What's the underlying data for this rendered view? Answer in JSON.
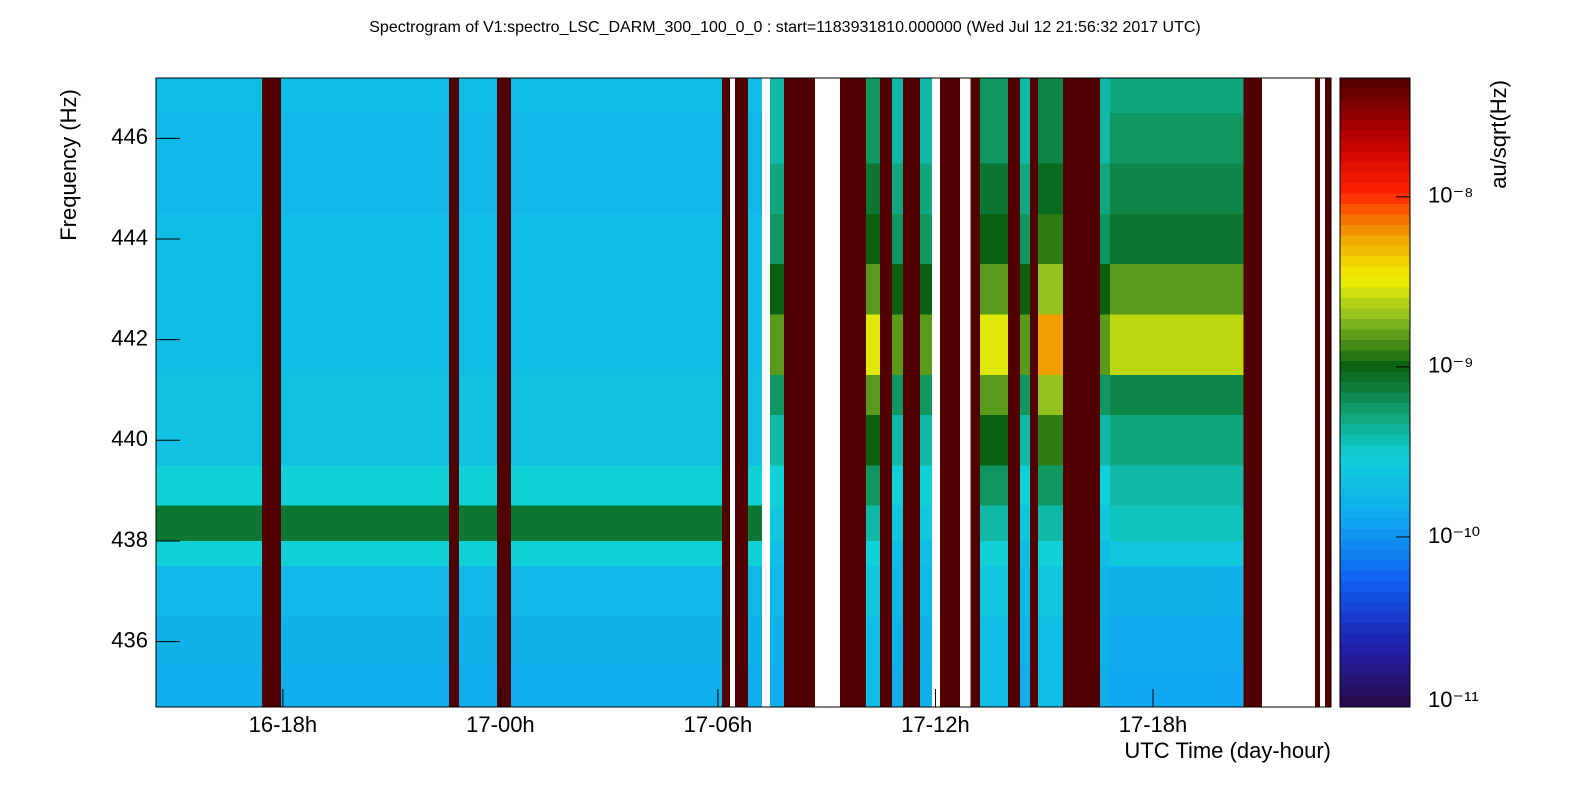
{
  "chart_data": {
    "type": "heatmap",
    "title": "Spectrogram of V1:spectro_LSC_DARM_300_100_0_0 : start=1183931810.000000 (Wed Jul 12 21:56:32 2017 UTC)",
    "x_label": "UTC Time (day-hour)",
    "y_label": "Frequency (Hz)",
    "colorbar_label": "au/sqrt(Hz)",
    "xlim": [
      14.5,
      46.91
    ],
    "xticks": [
      {
        "value": 18,
        "label": "16-18h"
      },
      {
        "value": 24,
        "label": "17-00h"
      },
      {
        "value": 30,
        "label": "17-06h"
      },
      {
        "value": 36,
        "label": "17-12h"
      },
      {
        "value": 42,
        "label": "17-18h"
      }
    ],
    "ylim": [
      434.7,
      447.2
    ],
    "yticks": [
      436,
      438,
      440,
      442,
      444,
      446
    ],
    "zlim": [
      1e-11,
      5e-08
    ],
    "zscale": "log",
    "zticks": [
      {
        "value": 1e-11,
        "label": "10⁻¹¹"
      },
      {
        "value": 1e-10,
        "label": "10⁻¹⁰"
      },
      {
        "value": 1e-09,
        "label": "10⁻⁹"
      },
      {
        "value": 1e-08,
        "label": "10⁻⁸"
      }
    ],
    "colormap": [
      [
        0,
        "#2a0a4a"
      ],
      [
        0.1,
        "#2020b0"
      ],
      [
        0.2,
        "#1060f0"
      ],
      [
        0.3,
        "#10a8f0"
      ],
      [
        0.4,
        "#10d0d8"
      ],
      [
        0.47,
        "#10a070"
      ],
      [
        0.54,
        "#086010"
      ],
      [
        0.62,
        "#90c020"
      ],
      [
        0.68,
        "#f0f000"
      ],
      [
        0.75,
        "#f0a000"
      ],
      [
        0.82,
        "#ff2000"
      ],
      [
        0.9,
        "#c00000"
      ],
      [
        1,
        "#500000"
      ]
    ],
    "x_edges": [
      14.5,
      17.42,
      17.95,
      22.58,
      22.86,
      23.91,
      24.29,
      30.11,
      30.33,
      30.47,
      30.83,
      31.22,
      31.44,
      31.82,
      32.68,
      33.37,
      34.09,
      34.47,
      34.8,
      35.11,
      35.58,
      35.91,
      36.13,
      36.68,
      36.96,
      37.23,
      38.0,
      38.33,
      38.61,
      38.83,
      39.52,
      40.54,
      40.82,
      44.49,
      45.01,
      46.47,
      46.61,
      46.75,
      46.91
    ],
    "y_edges": [
      434.7,
      435.5,
      436.5,
      437.5,
      438.0,
      438.7,
      439.5,
      440.5,
      441.3,
      442.5,
      443.5,
      444.5,
      445.5,
      446.5,
      447.2
    ],
    "values": [
      [
        1.5e-10,
        1.6e-10,
        1.8e-10,
        3e-10,
        8e-10,
        3e-10,
        2.2e-10,
        2.2e-10,
        2e-10,
        2e-10,
        2e-10,
        1.8e-10,
        1.8e-10,
        2e-10
      ],
      [
        5e-08,
        5e-08,
        5e-08,
        5e-08,
        5e-08,
        5e-08,
        5e-08,
        5e-08,
        5e-08,
        5e-08,
        5e-08,
        5e-08,
        5e-08,
        5e-08
      ],
      [
        1.5e-10,
        1.6e-10,
        1.8e-10,
        3e-10,
        8e-10,
        3e-10,
        2.2e-10,
        2.2e-10,
        2e-10,
        2e-10,
        2e-10,
        1.8e-10,
        1.8e-10,
        2e-10
      ],
      [
        5e-08,
        5e-08,
        5e-08,
        5e-08,
        5e-08,
        5e-08,
        5e-08,
        5e-08,
        5e-08,
        5e-08,
        5e-08,
        5e-08,
        5e-08,
        5e-08
      ],
      [
        1.5e-10,
        1.6e-10,
        1.8e-10,
        3e-10,
        8e-10,
        3e-10,
        2.2e-10,
        2.2e-10,
        2e-10,
        2e-10,
        2e-10,
        1.8e-10,
        1.8e-10,
        2e-10
      ],
      [
        5e-08,
        5e-08,
        5e-08,
        5e-08,
        5e-08,
        5e-08,
        5e-08,
        5e-08,
        5e-08,
        5e-08,
        5e-08,
        5e-08,
        5e-08,
        5e-08
      ],
      [
        1.5e-10,
        1.6e-10,
        1.8e-10,
        3e-10,
        8e-10,
        3e-10,
        2.2e-10,
        2.2e-10,
        2e-10,
        2e-10,
        2e-10,
        1.8e-10,
        1.8e-10,
        2e-10
      ],
      [
        5e-08,
        5e-08,
        5e-08,
        5e-08,
        5e-08,
        5e-08,
        5e-08,
        5e-08,
        5e-08,
        5e-08,
        5e-08,
        5e-08,
        5e-08,
        5e-08
      ],
      [
        null,
        null,
        null,
        null,
        null,
        null,
        null,
        null,
        null,
        null,
        null,
        null,
        null,
        null
      ],
      [
        5e-08,
        5e-08,
        5e-08,
        5e-08,
        5e-08,
        5e-08,
        5e-08,
        5e-08,
        5e-08,
        5e-08,
        5e-08,
        5e-08,
        5e-08,
        5e-08
      ],
      [
        1.5e-10,
        1.6e-10,
        1.8e-10,
        3e-10,
        8e-10,
        3e-10,
        2.2e-10,
        2.2e-10,
        2e-10,
        2e-10,
        2e-10,
        1.8e-10,
        1.8e-10,
        2e-10
      ],
      [
        null,
        null,
        null,
        null,
        null,
        null,
        null,
        null,
        null,
        null,
        null,
        null,
        null,
        null
      ],
      [
        1.5e-10,
        1.6e-10,
        1.8e-10,
        2e-10,
        2.5e-10,
        3e-10,
        4e-10,
        6e-10,
        1.5e-09,
        1e-09,
        6e-10,
        5e-10,
        4e-10,
        4e-10
      ],
      [
        5e-08,
        5e-08,
        5e-08,
        5e-08,
        5e-08,
        5e-08,
        5e-08,
        5e-08,
        5e-08,
        5e-08,
        5e-08,
        5e-08,
        5e-08,
        5e-08
      ],
      [
        null,
        null,
        null,
        null,
        null,
        null,
        null,
        null,
        null,
        null,
        null,
        null,
        null,
        null
      ],
      [
        5e-08,
        5e-08,
        5e-08,
        5e-08,
        5e-08,
        5e-08,
        5e-08,
        5e-08,
        5e-08,
        5e-08,
        5e-08,
        5e-08,
        5e-08,
        5e-08
      ],
      [
        2e-10,
        2e-10,
        2.5e-10,
        3e-10,
        4e-10,
        6e-10,
        1e-09,
        1.5e-09,
        3e-09,
        1.5e-09,
        1e-09,
        8e-10,
        6e-10,
        6e-10
      ],
      [
        5e-08,
        5e-08,
        5e-08,
        5e-08,
        5e-08,
        5e-08,
        5e-08,
        5e-08,
        5e-08,
        5e-08,
        5e-08,
        5e-08,
        5e-08,
        5e-08
      ],
      [
        1.5e-10,
        1.6e-10,
        1.8e-10,
        2e-10,
        2.5e-10,
        3e-10,
        4e-10,
        6e-10,
        1.5e-09,
        1e-09,
        6e-10,
        5e-10,
        4e-10,
        4e-10
      ],
      [
        5e-08,
        5e-08,
        5e-08,
        5e-08,
        5e-08,
        5e-08,
        5e-08,
        5e-08,
        5e-08,
        5e-08,
        5e-08,
        5e-08,
        5e-08,
        5e-08
      ],
      [
        1.5e-10,
        1.6e-10,
        1.8e-10,
        2e-10,
        2.5e-10,
        3e-10,
        4e-10,
        6e-10,
        1.5e-09,
        1e-09,
        6e-10,
        5e-10,
        4e-10,
        4e-10
      ],
      [
        null,
        null,
        null,
        null,
        null,
        null,
        null,
        null,
        null,
        null,
        null,
        null,
        null,
        null
      ],
      [
        5e-08,
        5e-08,
        5e-08,
        5e-08,
        5e-08,
        5e-08,
        5e-08,
        5e-08,
        5e-08,
        5e-08,
        5e-08,
        5e-08,
        5e-08,
        5e-08
      ],
      [
        null,
        null,
        null,
        null,
        null,
        null,
        null,
        null,
        null,
        null,
        null,
        null,
        null,
        null
      ],
      [
        5e-08,
        5e-08,
        5e-08,
        5e-08,
        5e-08,
        5e-08,
        5e-08,
        5e-08,
        5e-08,
        5e-08,
        5e-08,
        5e-08,
        5e-08,
        5e-08
      ],
      [
        2e-10,
        2e-10,
        2.5e-10,
        3e-10,
        4e-10,
        6e-10,
        1e-09,
        1.5e-09,
        3e-09,
        1.5e-09,
        1e-09,
        8e-10,
        6e-10,
        6e-10
      ],
      [
        5e-08,
        5e-08,
        5e-08,
        5e-08,
        5e-08,
        5e-08,
        5e-08,
        5e-08,
        5e-08,
        5e-08,
        5e-08,
        5e-08,
        5e-08,
        5e-08
      ],
      [
        1.5e-10,
        1.6e-10,
        1.8e-10,
        2e-10,
        2.5e-10,
        3e-10,
        4e-10,
        6e-10,
        1.5e-09,
        1e-09,
        6e-10,
        5e-10,
        4e-10,
        4e-10
      ],
      [
        5e-08,
        5e-08,
        5e-08,
        5e-08,
        5e-08,
        5e-08,
        5e-08,
        5e-08,
        5e-08,
        5e-08,
        5e-08,
        5e-08,
        5e-08,
        5e-08
      ],
      [
        2e-10,
        2e-10,
        2.5e-10,
        3e-10,
        4e-10,
        6e-10,
        1.2e-09,
        2e-09,
        6e-09,
        2e-09,
        1.2e-09,
        9e-10,
        7e-10,
        7e-10
      ],
      [
        5e-08,
        5e-08,
        5e-08,
        5e-08,
        5e-08,
        5e-08,
        5e-08,
        5e-08,
        5e-08,
        5e-08,
        5e-08,
        5e-08,
        5e-08,
        5e-08
      ],
      [
        1.5e-10,
        1.6e-10,
        1.8e-10,
        2e-10,
        2.5e-10,
        3e-10,
        4e-10,
        6e-10,
        1.5e-09,
        1e-09,
        6e-10,
        5e-10,
        4e-10,
        4e-10
      ],
      [
        1.3e-10,
        1.4e-10,
        1.6e-10,
        2.5e-10,
        3.5e-10,
        4e-10,
        5e-10,
        7e-10,
        2.5e-09,
        1.5e-09,
        8e-10,
        7e-10,
        6e-10,
        5e-10
      ],
      [
        5e-08,
        5e-08,
        5e-08,
        5e-08,
        5e-08,
        5e-08,
        5e-08,
        5e-08,
        5e-08,
        5e-08,
        5e-08,
        5e-08,
        5e-08,
        5e-08
      ],
      [
        null,
        null,
        null,
        null,
        null,
        null,
        null,
        null,
        null,
        null,
        null,
        null,
        null,
        null
      ],
      [
        5e-08,
        5e-08,
        5e-08,
        5e-08,
        5e-08,
        5e-08,
        5e-08,
        5e-08,
        5e-08,
        5e-08,
        5e-08,
        5e-08,
        5e-08,
        5e-08
      ],
      [
        null,
        null,
        null,
        null,
        null,
        null,
        null,
        null,
        null,
        null,
        null,
        null,
        null,
        null
      ],
      [
        5e-08,
        5e-08,
        5e-08,
        5e-08,
        5e-08,
        5e-08,
        5e-08,
        5e-08,
        5e-08,
        5e-08,
        5e-08,
        5e-08,
        5e-08,
        5e-08
      ]
    ]
  }
}
